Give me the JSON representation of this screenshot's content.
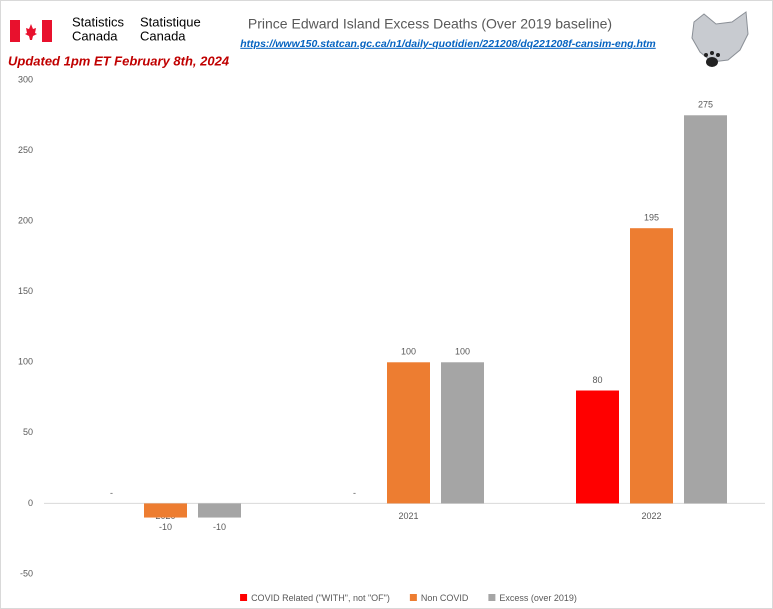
{
  "header": {
    "statcan_en": [
      "Statistics",
      "Canada"
    ],
    "statcan_fr": [
      "Statistique",
      "Canada"
    ]
  },
  "chart_data": {
    "type": "bar",
    "title": "Prince Edward Island Excess Deaths (Over 2019 baseline)",
    "subtitle": "https://www150.statcan.gc.ca/n1/daily-quotidien/221208/dq221208f-cansim-eng.htm",
    "annotation": "Updated 1pm ET February 8th, 2024",
    "categories": [
      "2020",
      "2021",
      "2022"
    ],
    "series": [
      {
        "name": "COVID Related (\"WITH\", not \"OF\")",
        "color": "#ff0000",
        "values": [
          null,
          null,
          80
        ],
        "value_labels": [
          "-",
          "-",
          "80"
        ]
      },
      {
        "name": "Non COVID",
        "color": "#ed7d31",
        "values": [
          -10,
          100,
          195
        ]
      },
      {
        "name": "Excess (over 2019)",
        "color": "#a5a5a5",
        "values": [
          -10,
          100,
          275
        ]
      }
    ],
    "ylim": [
      -50,
      300
    ],
    "yticks": [
      -50,
      0,
      50,
      100,
      150,
      200,
      250,
      300
    ],
    "grid": false
  }
}
